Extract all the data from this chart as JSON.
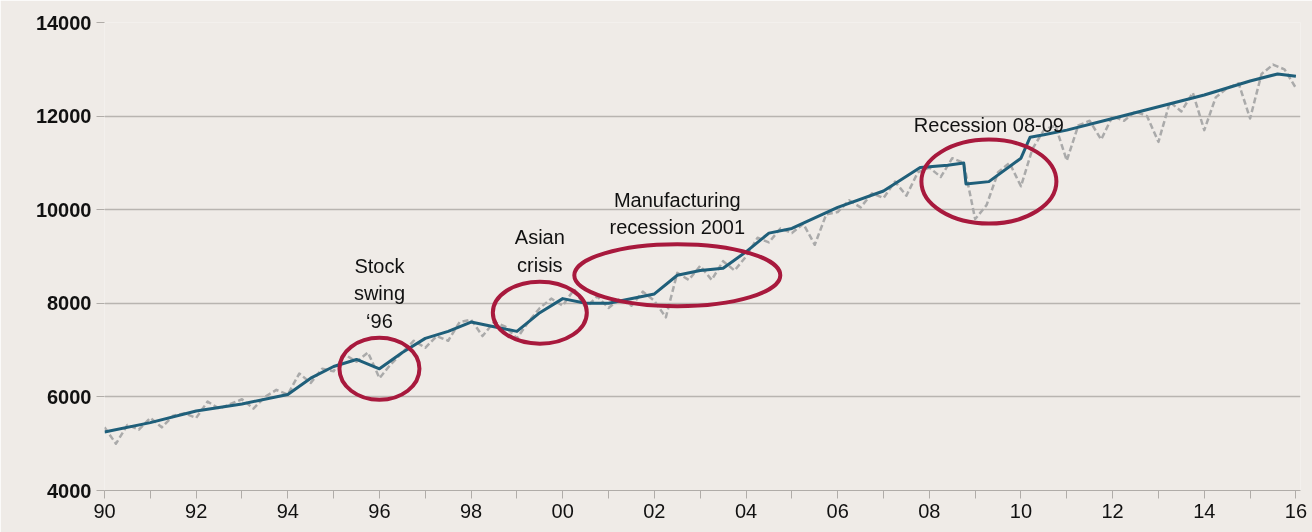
{
  "chart_data": {
    "type": "line",
    "xlim": [
      1990,
      2016.1
    ],
    "ylim": [
      4000,
      14000
    ],
    "yticks": [
      4000,
      6000,
      8000,
      10000,
      12000,
      14000
    ],
    "xticks": [
      {
        "value": 1990,
        "label": "90"
      },
      {
        "value": 1991,
        "label": null
      },
      {
        "value": 1992,
        "label": "92"
      },
      {
        "value": 1993,
        "label": null
      },
      {
        "value": 1994,
        "label": "94"
      },
      {
        "value": 1995,
        "label": null
      },
      {
        "value": 1996,
        "label": "96"
      },
      {
        "value": 1997,
        "label": null
      },
      {
        "value": 1998,
        "label": "98"
      },
      {
        "value": 1999,
        "label": null
      },
      {
        "value": 2000,
        "label": "00"
      },
      {
        "value": 2001,
        "label": null
      },
      {
        "value": 2002,
        "label": "02"
      },
      {
        "value": 2003,
        "label": null
      },
      {
        "value": 2004,
        "label": "04"
      },
      {
        "value": 2005,
        "label": null
      },
      {
        "value": 2006,
        "label": "06"
      },
      {
        "value": 2007,
        "label": null
      },
      {
        "value": 2008,
        "label": "08"
      },
      {
        "value": 2009,
        "label": null
      },
      {
        "value": 2010,
        "label": "10"
      },
      {
        "value": 2011,
        "label": null
      },
      {
        "value": 2012,
        "label": "12"
      },
      {
        "value": 2013,
        "label": null
      },
      {
        "value": 2014,
        "label": "14"
      },
      {
        "value": 2015,
        "label": null
      },
      {
        "value": 2016,
        "label": "16"
      }
    ],
    "grid": "y",
    "series": [
      {
        "color": "#aaaaaa",
        "line_style": "dashed",
        "x": [
          1990,
          1990.25,
          1990.5,
          1990.75,
          1991,
          1991.25,
          1991.5,
          1991.75,
          1992,
          1992.25,
          1992.5,
          1992.75,
          1993,
          1993.25,
          1993.5,
          1993.75,
          1994,
          1994.25,
          1994.5,
          1994.75,
          1995,
          1995.25,
          1995.5,
          1995.75,
          1996,
          1996.25,
          1996.5,
          1996.75,
          1997,
          1997.25,
          1997.5,
          1997.75,
          1998,
          1998.25,
          1998.5,
          1998.75,
          1999,
          1999.25,
          1999.5,
          1999.75,
          2000,
          2000.25,
          2000.5,
          2000.75,
          2001,
          2001.25,
          2001.5,
          2001.75,
          2002,
          2002.25,
          2002.5,
          2002.75,
          2003,
          2003.25,
          2003.5,
          2003.75,
          2004,
          2004.25,
          2004.5,
          2004.75,
          2005,
          2005.25,
          2005.5,
          2005.75,
          2006,
          2006.25,
          2006.5,
          2006.75,
          2007,
          2007.25,
          2007.5,
          2007.75,
          2008,
          2008.25,
          2008.5,
          2008.75,
          2009,
          2009.25,
          2009.5,
          2009.75,
          2010,
          2010.25,
          2010.5,
          2010.75,
          2011,
          2011.25,
          2011.5,
          2011.75,
          2012,
          2012.25,
          2012.5,
          2012.75,
          2013,
          2013.25,
          2013.5,
          2013.75,
          2014,
          2014.25,
          2014.5,
          2014.75,
          2015,
          2015.25,
          2015.5,
          2015.75,
          2016
        ],
        "values": [
          5350,
          5000,
          5400,
          5300,
          5550,
          5350,
          5600,
          5650,
          5550,
          5900,
          5750,
          5850,
          5950,
          5750,
          6000,
          6150,
          6050,
          6500,
          6300,
          6600,
          6550,
          6900,
          6750,
          6950,
          6400,
          6700,
          6950,
          7200,
          7050,
          7300,
          7200,
          7600,
          7650,
          7300,
          7600,
          7500,
          7250,
          7600,
          7900,
          8100,
          7950,
          8300,
          7900,
          8150,
          7900,
          8100,
          7950,
          8250,
          8050,
          7700,
          8650,
          8500,
          8800,
          8500,
          8900,
          8700,
          9000,
          9400,
          9300,
          9600,
          9500,
          9700,
          9250,
          9900,
          9950,
          10200,
          10050,
          10350,
          10250,
          10600,
          10300,
          10800,
          10900,
          10700,
          11100,
          11000,
          9800,
          10100,
          10800,
          11000,
          10500,
          11300,
          11700,
          11800,
          11050,
          11800,
          11900,
          11500,
          12000,
          11900,
          12100,
          12000,
          11450,
          12300,
          12100,
          12500,
          11700,
          12400,
          12600,
          12700,
          11950,
          12900,
          13100,
          13000,
          12600
        ]
      },
      {
        "color": "#1f5f7a",
        "line_style": "solid",
        "x": [
          1990,
          1991,
          1992,
          1993,
          1994,
          1994.5,
          1995,
          1995.5,
          1996,
          1996.5,
          1997,
          1997.5,
          1998,
          1998.5,
          1999,
          1999.5,
          2000,
          2000.5,
          2001,
          2002,
          2002.5,
          2003,
          2003.5,
          2004,
          2004.5,
          2005,
          2006,
          2007,
          2007.8,
          2008.4,
          2008.75,
          2008.8,
          2009.3,
          2010,
          2010.2,
          2010.5,
          2011,
          2012,
          2013,
          2014,
          2015,
          2015.6,
          2016
        ],
        "values": [
          5250,
          5450,
          5700,
          5850,
          6050,
          6400,
          6650,
          6800,
          6600,
          6950,
          7250,
          7400,
          7600,
          7500,
          7400,
          7800,
          8100,
          8000,
          8000,
          8200,
          8600,
          8700,
          8750,
          9100,
          9500,
          9600,
          10050,
          10400,
          10900,
          10950,
          11000,
          10550,
          10600,
          11100,
          11550,
          11600,
          11700,
          11950,
          12200,
          12450,
          12750,
          12900,
          12850
        ]
      }
    ],
    "annotations": [
      {
        "text": "Stock\nswing\n‘96",
        "x": 1996,
        "y": 6600
      },
      {
        "text": "Asian\ncrisis",
        "x": 1999.5,
        "y": 7800
      },
      {
        "text": "Manufacturing\nrecession 2001",
        "x": 2002.5,
        "y": 8600
      },
      {
        "text": "Recession 08-09",
        "x": 2009.3,
        "y": 10600
      }
    ]
  }
}
